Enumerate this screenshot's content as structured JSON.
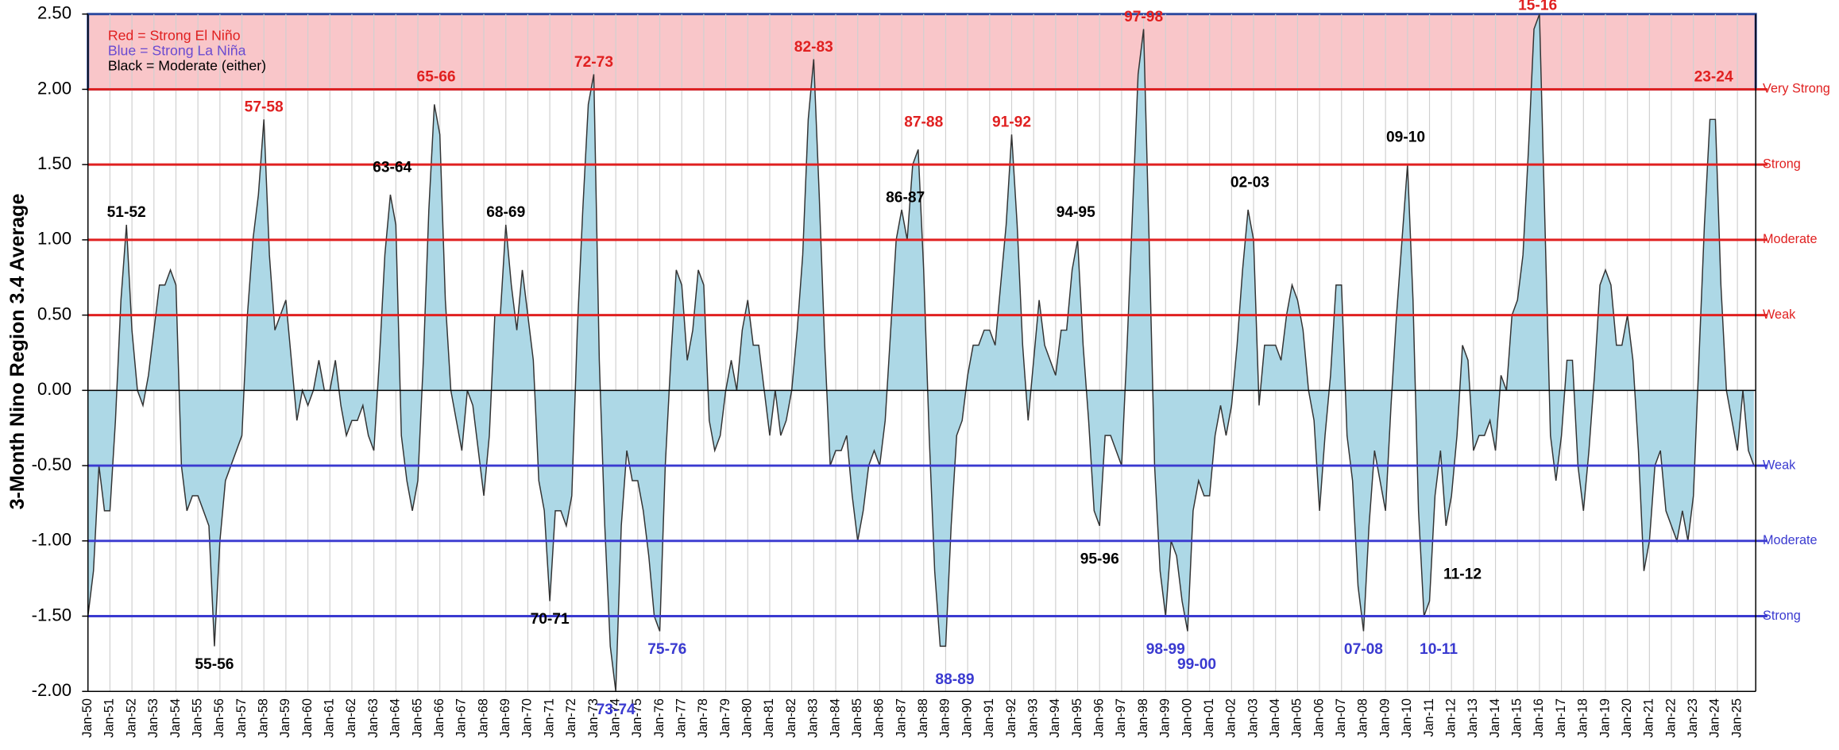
{
  "chart_data": {
    "type": "area",
    "y_label": "3-Month Nino Region 3.4 Average",
    "color": "#add8e6",
    "line_color": "#333333",
    "grid": true,
    "xlim": [
      "1950-01",
      "2025-11"
    ],
    "ylim": [
      -2.0,
      2.5
    ],
    "yticks": [
      {
        "value": -2.0,
        "label": "-2.00"
      },
      {
        "value": -1.5,
        "label": "-1.50"
      },
      {
        "value": -1.0,
        "label": "-1.00"
      },
      {
        "value": -0.5,
        "label": "-0.50"
      },
      {
        "value": 0,
        "label": "0.00"
      },
      {
        "value": 0.5,
        "label": "0.50"
      },
      {
        "value": 1.0,
        "label": "1.00"
      },
      {
        "value": 1.5,
        "label": "1.50"
      },
      {
        "value": 2.0,
        "label": "2.00"
      },
      {
        "value": 2.5,
        "label": "2.50"
      }
    ],
    "xticks": [
      {
        "value": "1950-01",
        "label": "Jan-50"
      },
      {
        "value": "1951-01",
        "label": "Jan-51"
      },
      {
        "value": "1952-01",
        "label": "Jan-52"
      },
      {
        "value": "1953-01",
        "label": "Jan-53"
      },
      {
        "value": "1954-01",
        "label": "Jan-54"
      },
      {
        "value": "1955-01",
        "label": "Jan-55"
      },
      {
        "value": "1956-01",
        "label": "Jan-56"
      },
      {
        "value": "1957-01",
        "label": "Jan-57"
      },
      {
        "value": "1958-01",
        "label": "Jan-58"
      },
      {
        "value": "1959-01",
        "label": "Jan-59"
      },
      {
        "value": "1960-01",
        "label": "Jan-60"
      },
      {
        "value": "1961-01",
        "label": "Jan-61"
      },
      {
        "value": "1962-01",
        "label": "Jan-62"
      },
      {
        "value": "1963-01",
        "label": "Jan-63"
      },
      {
        "value": "1964-01",
        "label": "Jan-64"
      },
      {
        "value": "1965-01",
        "label": "Jan-65"
      },
      {
        "value": "1966-01",
        "label": "Jan-66"
      },
      {
        "value": "1967-01",
        "label": "Jan-67"
      },
      {
        "value": "1968-01",
        "label": "Jan-68"
      },
      {
        "value": "1969-01",
        "label": "Jan-69"
      },
      {
        "value": "1970-01",
        "label": "Jan-70"
      },
      {
        "value": "1971-01",
        "label": "Jan-71"
      },
      {
        "value": "1972-01",
        "label": "Jan-72"
      },
      {
        "value": "1973-01",
        "label": "Jan-73"
      },
      {
        "value": "1974-01",
        "label": "Jan-74"
      },
      {
        "value": "1975-01",
        "label": "Jan-75"
      },
      {
        "value": "1976-01",
        "label": "Jan-76"
      },
      {
        "value": "1977-01",
        "label": "Jan-77"
      },
      {
        "value": "1978-01",
        "label": "Jan-78"
      },
      {
        "value": "1979-01",
        "label": "Jan-79"
      },
      {
        "value": "1980-01",
        "label": "Jan-80"
      },
      {
        "value": "1981-01",
        "label": "Jan-81"
      },
      {
        "value": "1982-01",
        "label": "Jan-82"
      },
      {
        "value": "1983-01",
        "label": "Jan-83"
      },
      {
        "value": "1984-01",
        "label": "Jan-84"
      },
      {
        "value": "1985-01",
        "label": "Jan-85"
      },
      {
        "value": "1986-01",
        "label": "Jan-86"
      },
      {
        "value": "1987-01",
        "label": "Jan-87"
      },
      {
        "value": "1988-01",
        "label": "Jan-88"
      },
      {
        "value": "1989-01",
        "label": "Jan-89"
      },
      {
        "value": "1990-01",
        "label": "Jan-90"
      },
      {
        "value": "1991-01",
        "label": "Jan-91"
      },
      {
        "value": "1992-01",
        "label": "Jan-92"
      },
      {
        "value": "1993-01",
        "label": "Jan-93"
      },
      {
        "value": "1994-01",
        "label": "Jan-94"
      },
      {
        "value": "1995-01",
        "label": "Jan-95"
      },
      {
        "value": "1996-01",
        "label": "Jan-96"
      },
      {
        "value": "1997-01",
        "label": "Jan-97"
      },
      {
        "value": "1998-01",
        "label": "Jan-98"
      },
      {
        "value": "1999-01",
        "label": "Jan-99"
      },
      {
        "value": "2000-01",
        "label": "Jan-00"
      },
      {
        "value": "2001-01",
        "label": "Jan-01"
      },
      {
        "value": "2002-01",
        "label": "Jan-02"
      },
      {
        "value": "2003-01",
        "label": "Jan-03"
      },
      {
        "value": "2004-01",
        "label": "Jan-04"
      },
      {
        "value": "2005-01",
        "label": "Jan-05"
      },
      {
        "value": "2006-01",
        "label": "Jan-06"
      },
      {
        "value": "2007-01",
        "label": "Jan-07"
      },
      {
        "value": "2008-01",
        "label": "Jan-08"
      },
      {
        "value": "2009-01",
        "label": "Jan-09"
      },
      {
        "value": "2010-01",
        "label": "Jan-10"
      },
      {
        "value": "2011-01",
        "label": "Jan-11"
      },
      {
        "value": "2012-01",
        "label": "Jan-12"
      },
      {
        "value": "2013-01",
        "label": "Jan-13"
      },
      {
        "value": "2014-01",
        "label": "Jan-14"
      },
      {
        "value": "2015-01",
        "label": "Jan-15"
      },
      {
        "value": "2016-01",
        "label": "Jan-16"
      },
      {
        "value": "2017-01",
        "label": "Jan-17"
      },
      {
        "value": "2018-01",
        "label": "Jan-18"
      },
      {
        "value": "2019-01",
        "label": "Jan-19"
      },
      {
        "value": "2020-01",
        "label": "Jan-20"
      },
      {
        "value": "2021-01",
        "label": "Jan-21"
      },
      {
        "value": "2022-01",
        "label": "Jan-22"
      },
      {
        "value": "2023-01",
        "label": "Jan-23"
      },
      {
        "value": "2024-01",
        "label": "Jan-24"
      },
      {
        "value": "2025-01",
        "label": "Jan-25"
      }
    ],
    "x": [
      "1950-01",
      "1950-04",
      "1950-07",
      "1950-10",
      "1951-01",
      "1951-04",
      "1951-07",
      "1951-10",
      "1952-01",
      "1952-04",
      "1952-07",
      "1952-10",
      "1953-01",
      "1953-04",
      "1953-07",
      "1953-10",
      "1954-01",
      "1954-04",
      "1954-07",
      "1954-10",
      "1955-01",
      "1955-04",
      "1955-07",
      "1955-10",
      "1956-01",
      "1956-04",
      "1956-07",
      "1956-10",
      "1957-01",
      "1957-04",
      "1957-07",
      "1957-10",
      "1958-01",
      "1958-04",
      "1958-07",
      "1958-10",
      "1959-01",
      "1959-04",
      "1959-07",
      "1959-10",
      "1960-01",
      "1960-04",
      "1960-07",
      "1960-10",
      "1961-01",
      "1961-04",
      "1961-07",
      "1961-10",
      "1962-01",
      "1962-04",
      "1962-07",
      "1962-10",
      "1963-01",
      "1963-04",
      "1963-07",
      "1963-10",
      "1964-01",
      "1964-04",
      "1964-07",
      "1964-10",
      "1965-01",
      "1965-04",
      "1965-07",
      "1965-10",
      "1966-01",
      "1966-04",
      "1966-07",
      "1966-10",
      "1967-01",
      "1967-04",
      "1967-07",
      "1967-10",
      "1968-01",
      "1968-04",
      "1968-07",
      "1968-10",
      "1969-01",
      "1969-04",
      "1969-07",
      "1969-10",
      "1970-01",
      "1970-04",
      "1970-07",
      "1970-10",
      "1971-01",
      "1971-04",
      "1971-07",
      "1971-10",
      "1972-01",
      "1972-04",
      "1972-07",
      "1972-10",
      "1973-01",
      "1973-04",
      "1973-07",
      "1973-10",
      "1974-01",
      "1974-04",
      "1974-07",
      "1974-10",
      "1975-01",
      "1975-04",
      "1975-07",
      "1975-10",
      "1976-01",
      "1976-04",
      "1976-07",
      "1976-10",
      "1977-01",
      "1977-04",
      "1977-07",
      "1977-10",
      "1978-01",
      "1978-04",
      "1978-07",
      "1978-10",
      "1979-01",
      "1979-04",
      "1979-07",
      "1979-10",
      "1980-01",
      "1980-04",
      "1980-07",
      "1980-10",
      "1981-01",
      "1981-04",
      "1981-07",
      "1981-10",
      "1982-01",
      "1982-04",
      "1982-07",
      "1982-10",
      "1983-01",
      "1983-04",
      "1983-07",
      "1983-10",
      "1984-01",
      "1984-04",
      "1984-07",
      "1984-10",
      "1985-01",
      "1985-04",
      "1985-07",
      "1985-10",
      "1986-01",
      "1986-04",
      "1986-07",
      "1986-10",
      "1987-01",
      "1987-04",
      "1987-07",
      "1987-10",
      "1988-01",
      "1988-04",
      "1988-07",
      "1988-10",
      "1989-01",
      "1989-04",
      "1989-07",
      "1989-10",
      "1990-01",
      "1990-04",
      "1990-07",
      "1990-10",
      "1991-01",
      "1991-04",
      "1991-07",
      "1991-10",
      "1992-01",
      "1992-04",
      "1992-07",
      "1992-10",
      "1993-01",
      "1993-04",
      "1993-07",
      "1993-10",
      "1994-01",
      "1994-04",
      "1994-07",
      "1994-10",
      "1995-01",
      "1995-04",
      "1995-07",
      "1995-10",
      "1996-01",
      "1996-04",
      "1996-07",
      "1996-10",
      "1997-01",
      "1997-04",
      "1997-07",
      "1997-10",
      "1998-01",
      "1998-04",
      "1998-07",
      "1998-10",
      "1999-01",
      "1999-04",
      "1999-07",
      "1999-10",
      "2000-01",
      "2000-04",
      "2000-07",
      "2000-10",
      "2001-01",
      "2001-04",
      "2001-07",
      "2001-10",
      "2002-01",
      "2002-04",
      "2002-07",
      "2002-10",
      "2003-01",
      "2003-04",
      "2003-07",
      "2003-10",
      "2004-01",
      "2004-04",
      "2004-07",
      "2004-10",
      "2005-01",
      "2005-04",
      "2005-07",
      "2005-10",
      "2006-01",
      "2006-04",
      "2006-07",
      "2006-10",
      "2007-01",
      "2007-04",
      "2007-07",
      "2007-10",
      "2008-01",
      "2008-04",
      "2008-07",
      "2008-10",
      "2009-01",
      "2009-04",
      "2009-07",
      "2009-10",
      "2010-01",
      "2010-04",
      "2010-07",
      "2010-10",
      "2011-01",
      "2011-04",
      "2011-07",
      "2011-10",
      "2012-01",
      "2012-04",
      "2012-07",
      "2012-10",
      "2013-01",
      "2013-04",
      "2013-07",
      "2013-10",
      "2014-01",
      "2014-04",
      "2014-07",
      "2014-10",
      "2015-01",
      "2015-04",
      "2015-07",
      "2015-10",
      "2016-01",
      "2016-04",
      "2016-07",
      "2016-10",
      "2017-01",
      "2017-04",
      "2017-07",
      "2017-10",
      "2018-01",
      "2018-04",
      "2018-07",
      "2018-10",
      "2019-01",
      "2019-04",
      "2019-07",
      "2019-10",
      "2020-01",
      "2020-04",
      "2020-07",
      "2020-10",
      "2021-01",
      "2021-04",
      "2021-07",
      "2021-10",
      "2022-01",
      "2022-04",
      "2022-07",
      "2022-10",
      "2023-01",
      "2023-04",
      "2023-07",
      "2023-10",
      "2024-01",
      "2024-04",
      "2024-07",
      "2024-10",
      "2025-01",
      "2025-04",
      "2025-07",
      "2025-10"
    ],
    "values": [
      -1.5,
      -1.2,
      -0.5,
      -0.8,
      -0.8,
      -0.2,
      0.6,
      1.1,
      0.4,
      0.0,
      -0.1,
      0.1,
      0.4,
      0.7,
      0.7,
      0.8,
      0.7,
      -0.5,
      -0.8,
      -0.7,
      -0.7,
      -0.8,
      -0.9,
      -1.7,
      -1.0,
      -0.6,
      -0.5,
      -0.4,
      -0.3,
      0.5,
      1.0,
      1.3,
      1.8,
      0.9,
      0.4,
      0.5,
      0.6,
      0.2,
      -0.2,
      0.0,
      -0.1,
      0.0,
      0.2,
      0.0,
      0.0,
      0.2,
      -0.1,
      -0.3,
      -0.2,
      -0.2,
      -0.1,
      -0.3,
      -0.4,
      0.2,
      0.9,
      1.3,
      1.1,
      -0.3,
      -0.6,
      -0.8,
      -0.6,
      0.2,
      1.2,
      1.9,
      1.7,
      0.6,
      0.0,
      -0.2,
      -0.4,
      0.0,
      -0.1,
      -0.4,
      -0.7,
      -0.3,
      0.5,
      0.5,
      1.1,
      0.7,
      0.4,
      0.8,
      0.5,
      0.2,
      -0.6,
      -0.8,
      -1.4,
      -0.8,
      -0.8,
      -0.9,
      -0.7,
      0.4,
      1.2,
      1.9,
      2.1,
      0.2,
      -0.9,
      -1.7,
      -2.0,
      -0.9,
      -0.4,
      -0.6,
      -0.6,
      -0.8,
      -1.1,
      -1.5,
      -1.6,
      -0.5,
      0.2,
      0.8,
      0.7,
      0.2,
      0.4,
      0.8,
      0.7,
      -0.2,
      -0.4,
      -0.3,
      0.0,
      0.2,
      0.0,
      0.4,
      0.6,
      0.3,
      0.3,
      0.0,
      -0.3,
      0.0,
      -0.3,
      -0.2,
      0.0,
      0.4,
      0.9,
      1.8,
      2.2,
      1.3,
      0.3,
      -0.5,
      -0.4,
      -0.4,
      -0.3,
      -0.7,
      -1.0,
      -0.8,
      -0.5,
      -0.4,
      -0.5,
      -0.2,
      0.4,
      1.0,
      1.2,
      1.0,
      1.5,
      1.6,
      0.8,
      -0.3,
      -1.2,
      -1.7,
      -1.7,
      -0.9,
      -0.3,
      -0.2,
      0.1,
      0.3,
      0.3,
      0.4,
      0.4,
      0.3,
      0.7,
      1.1,
      1.7,
      1.1,
      0.3,
      -0.2,
      0.2,
      0.6,
      0.3,
      0.2,
      0.1,
      0.4,
      0.4,
      0.8,
      1.0,
      0.3,
      -0.2,
      -0.8,
      -0.9,
      -0.3,
      -0.3,
      -0.4,
      -0.5,
      0.3,
      1.2,
      2.1,
      2.4,
      1.0,
      -0.5,
      -1.2,
      -1.5,
      -1.0,
      -1.1,
      -1.4,
      -1.6,
      -0.8,
      -0.6,
      -0.7,
      -0.7,
      -0.3,
      -0.1,
      -0.3,
      -0.1,
      0.3,
      0.8,
      1.2,
      1.0,
      -0.1,
      0.3,
      0.3,
      0.3,
      0.2,
      0.5,
      0.7,
      0.6,
      0.4,
      0.0,
      -0.2,
      -0.8,
      -0.3,
      0.1,
      0.7,
      0.7,
      -0.3,
      -0.6,
      -1.3,
      -1.6,
      -0.9,
      -0.4,
      -0.6,
      -0.8,
      -0.1,
      0.5,
      1.0,
      1.5,
      0.6,
      -0.8,
      -1.5,
      -1.4,
      -0.7,
      -0.4,
      -0.9,
      -0.7,
      -0.3,
      0.3,
      0.2,
      -0.4,
      -0.3,
      -0.3,
      -0.2,
      -0.4,
      0.1,
      0.0,
      0.5,
      0.6,
      0.9,
      1.6,
      2.4,
      2.5,
      1.1,
      -0.3,
      -0.6,
      -0.3,
      0.2,
      0.2,
      -0.5,
      -0.8,
      -0.4,
      0.1,
      0.7,
      0.8,
      0.7,
      0.3,
      0.3,
      0.5,
      0.2,
      -0.4,
      -1.2,
      -1.0,
      -0.5,
      -0.4,
      -0.8,
      -0.9,
      -1.0,
      -0.8,
      -1.0,
      -0.7,
      0.2,
      1.1,
      1.8,
      1.8,
      0.7,
      0.0,
      -0.2,
      -0.4,
      0.0,
      -0.4,
      -0.5
    ],
    "band": {
      "range": [
        2.0,
        2.5
      ],
      "color": "#f9c6c9",
      "border": "#2c4aa0"
    },
    "legend_note": [
      {
        "text": "Red = Strong  El Niño",
        "color": "#e02020"
      },
      {
        "text": "Blue = Strong  La Niña",
        "color": "#6a4bd0"
      },
      {
        "text": "Black = Moderate  (either)",
        "color": "#000000"
      }
    ],
    "reference_lines": [
      {
        "value": 2.0,
        "label": "Very Strong",
        "color": "#e02020"
      },
      {
        "value": 1.5,
        "label": "Strong",
        "color": "#e02020"
      },
      {
        "value": 1.0,
        "label": "Moderate",
        "color": "#e02020"
      },
      {
        "value": 0.5,
        "label": "Weak",
        "color": "#e02020"
      },
      {
        "value": -0.5,
        "label": "Weak",
        "color": "#3a3ad0"
      },
      {
        "value": -1.0,
        "label": "Moderate",
        "color": "#3a3ad0"
      },
      {
        "value": -1.5,
        "label": "Strong",
        "color": "#3a3ad0"
      }
    ],
    "annotations": [
      {
        "text": "51-52",
        "x": "1951-10",
        "y": 1.1,
        "color": "#000000"
      },
      {
        "text": "55-56",
        "x": "1955-10",
        "y": -1.7,
        "color": "#000000"
      },
      {
        "text": "57-58",
        "x": "1958-01",
        "y": 1.8,
        "color": "#e02020"
      },
      {
        "text": "63-64",
        "x": "1963-11",
        "y": 1.4,
        "color": "#000000"
      },
      {
        "text": "65-66",
        "x": "1965-11",
        "y": 2.0,
        "color": "#e02020"
      },
      {
        "text": "68-69",
        "x": "1969-01",
        "y": 1.1,
        "color": "#000000"
      },
      {
        "text": "70-71",
        "x": "1971-01",
        "y": -1.4,
        "color": "#000000"
      },
      {
        "text": "72-73",
        "x": "1973-01",
        "y": 2.1,
        "color": "#e02020"
      },
      {
        "text": "73-74",
        "x": "1974-01",
        "y": -2.0,
        "color": "#3a3ad0"
      },
      {
        "text": "75-76",
        "x": "1976-05",
        "y": -1.6,
        "color": "#3a3ad0"
      },
      {
        "text": "82-83",
        "x": "1983-01",
        "y": 2.2,
        "color": "#e02020"
      },
      {
        "text": "86-87",
        "x": "1987-03",
        "y": 1.2,
        "color": "#000000"
      },
      {
        "text": "87-88",
        "x": "1988-01",
        "y": 1.7,
        "color": "#e02020"
      },
      {
        "text": "88-89",
        "x": "1989-06",
        "y": -1.8,
        "color": "#3a3ad0"
      },
      {
        "text": "91-92",
        "x": "1992-01",
        "y": 1.7,
        "color": "#e02020"
      },
      {
        "text": "94-95",
        "x": "1994-12",
        "y": 1.1,
        "color": "#000000"
      },
      {
        "text": "95-96",
        "x": "1996-01",
        "y": -1.0,
        "color": "#000000"
      },
      {
        "text": "97-98",
        "x": "1998-01",
        "y": 2.4,
        "color": "#e02020"
      },
      {
        "text": "98-99",
        "x": "1999-01",
        "y": -1.6,
        "color": "#3a3ad0"
      },
      {
        "text": "99-00",
        "x": "2000-06",
        "y": -1.7,
        "color": "#3a3ad0"
      },
      {
        "text": "02-03",
        "x": "2002-11",
        "y": 1.3,
        "color": "#000000"
      },
      {
        "text": "07-08",
        "x": "2008-01",
        "y": -1.6,
        "color": "#3a3ad0"
      },
      {
        "text": "09-10",
        "x": "2009-12",
        "y": 1.6,
        "color": "#000000"
      },
      {
        "text": "10-11",
        "x": "2011-06",
        "y": -1.6,
        "color": "#3a3ad0"
      },
      {
        "text": "11-12",
        "x": "2012-07",
        "y": -1.1,
        "color": "#000000"
      },
      {
        "text": "15-16",
        "x": "2015-12",
        "y": 2.6,
        "color": "#e02020"
      },
      {
        "text": "23-24",
        "x": "2023-12",
        "y": 2.0,
        "color": "#e02020"
      }
    ]
  }
}
